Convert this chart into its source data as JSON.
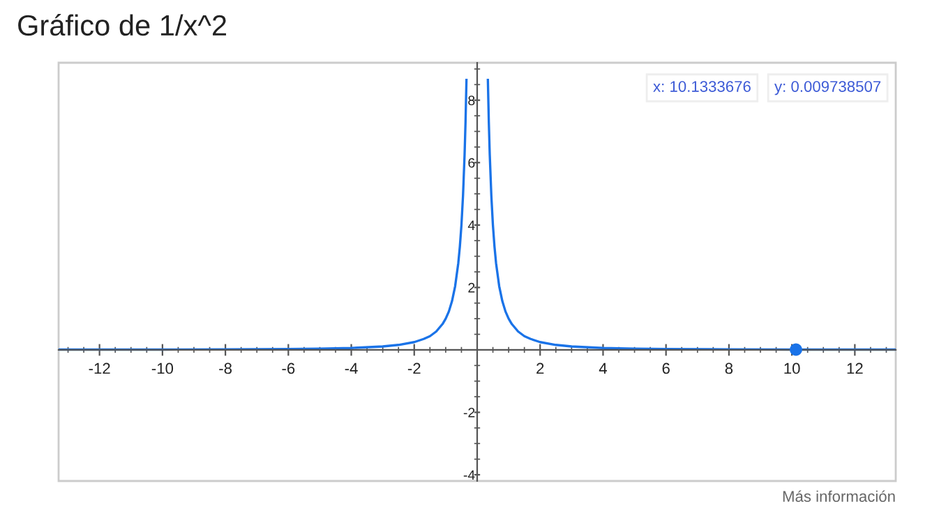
{
  "chart_data": {
    "type": "line",
    "title": "Gráfico de 1/x^2",
    "series": [
      {
        "color": "#1a73e8",
        "x": [
          -13.3,
          -12,
          -10,
          -8,
          -6,
          -5,
          -4,
          -3,
          -2.5,
          -2,
          -1.7,
          -1.5,
          -1.3,
          -1.1,
          -1,
          -0.9,
          -0.8,
          -0.7,
          -0.6,
          -0.55,
          -0.5,
          -0.45,
          -0.4,
          -0.37,
          -0.34,
          0,
          0.34,
          0.37,
          0.4,
          0.45,
          0.5,
          0.55,
          0.6,
          0.7,
          0.8,
          0.9,
          1,
          1.1,
          1.3,
          1.5,
          1.7,
          2,
          2.5,
          3,
          4,
          5,
          6,
          8,
          10,
          12,
          13.3
        ],
        "values": [
          0.01,
          0.01,
          0.01,
          0.02,
          0.03,
          0.04,
          0.06,
          0.11,
          0.16,
          0.25,
          0.35,
          0.44,
          0.59,
          0.83,
          1,
          1.23,
          1.56,
          2.04,
          2.78,
          3.31,
          4,
          4.94,
          6.25,
          7.3,
          8.65,
          null,
          8.65,
          7.3,
          6.25,
          4.94,
          4,
          3.31,
          2.78,
          2.04,
          1.56,
          1.23,
          1,
          0.83,
          0.59,
          0.44,
          0.35,
          0.25,
          0.16,
          0.11,
          0.06,
          0.04,
          0.03,
          0.02,
          0.01,
          0.01,
          0.01
        ]
      },
      {
        "type": "scatter",
        "color": "#1a73e8",
        "x": [
          10.13
        ],
        "values": [
          0.01
        ]
      }
    ],
    "xlim": [
      -13.3,
      13.3
    ],
    "ylim": [
      -4.2,
      9.2
    ],
    "xticks": [
      -12,
      -10,
      -8,
      -6,
      -4,
      -2,
      2,
      4,
      6,
      8,
      10,
      12
    ],
    "yticks": [
      -4,
      -2,
      2,
      4,
      6,
      8
    ],
    "grid": false,
    "annotations": [
      "x: 10.1333676",
      "y: 0.009738507",
      "Más información"
    ]
  }
}
